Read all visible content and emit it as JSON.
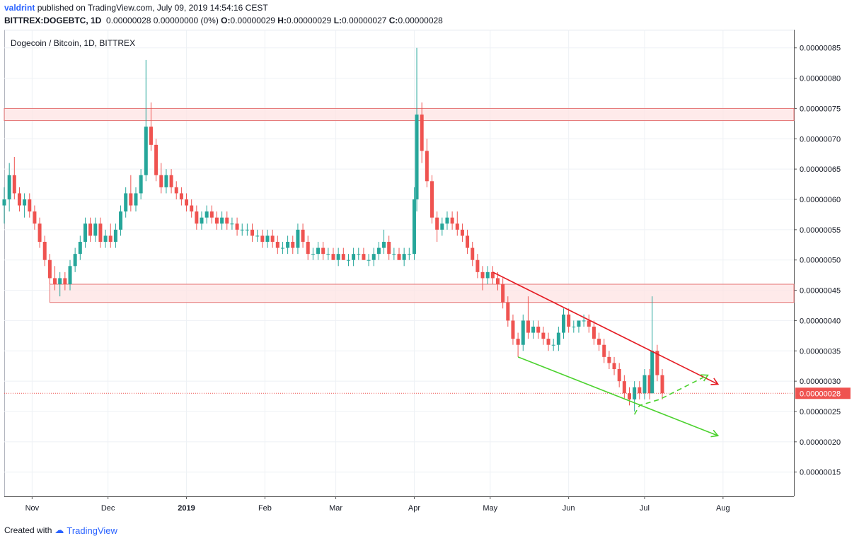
{
  "header": {
    "author": "valdrint",
    "published_text": "published on TradingView.com, July 09, 2019 14:54:16 CEST",
    "symbol": "BITTREX:DOGEBTC, 1D",
    "ohlc_text": "0.00000028 0.00000000 (0%)",
    "o_label": "O:",
    "o_value": "0.00000029",
    "h_label": "H:",
    "h_value": "0.00000029",
    "l_label": "L:",
    "l_value": "0.00000027",
    "c_label": "C:",
    "c_value": "0.00000028"
  },
  "footer": {
    "created_with": "Created with",
    "brand": "TradingView"
  },
  "colors": {
    "up": "#26a69a",
    "down": "#ef5350",
    "zone_fill": "#fde3e3",
    "zone_stroke": "#e57373",
    "red_line": "#e51c23",
    "green_line": "#4cd22f",
    "price_label_bg": "#ef5350",
    "grid": "#eef1f5"
  },
  "chart_data": {
    "type": "candlestick",
    "title": "Dogecoin / Bitcoin, 1D, BITTREX",
    "y_ticks": [
      "0.00000085",
      "0.00000080",
      "0.00000075",
      "0.00000070",
      "0.00000065",
      "0.00000060",
      "0.00000055",
      "0.00000050",
      "0.00000045",
      "0.00000040",
      "0.00000035",
      "0.00000030",
      "0.00000025",
      "0.00000020",
      "0.00000015"
    ],
    "y_tick_values": [
      85,
      80,
      75,
      70,
      65,
      60,
      55,
      50,
      45,
      40,
      35,
      30,
      25,
      20,
      15
    ],
    "y_unit_scale": 1e-08,
    "ylim": [
      11,
      88
    ],
    "x_ticks": [
      "Nov",
      "Dec",
      "2019",
      "Feb",
      "Mar",
      "Apr",
      "May",
      "Jun",
      "Jul",
      "Aug"
    ],
    "x_tick_dates": [
      "2018-11-01",
      "2018-12-01",
      "2019-01-01",
      "2019-02-01",
      "2019-03-01",
      "2019-04-01",
      "2019-05-01",
      "2019-06-01",
      "2019-07-01",
      "2019-08-01"
    ],
    "xlim": [
      "2018-10-21",
      "2019-08-29"
    ],
    "current_price": "0.00000028",
    "current_price_value": 28,
    "zones": [
      {
        "from": "2018-10-21",
        "to": "2019-08-29",
        "low": 73,
        "high": 75
      },
      {
        "from": "2018-11-08",
        "to": "2019-08-29",
        "low": 43,
        "high": 46
      }
    ],
    "trend_lines": [
      {
        "color": "red",
        "style": "solid",
        "arrow": true,
        "points": [
          [
            "2019-05-02",
            48
          ],
          [
            "2019-07-30",
            29.5
          ]
        ]
      },
      {
        "color": "green",
        "style": "solid",
        "arrow": true,
        "points": [
          [
            "2019-05-12",
            34
          ],
          [
            "2019-07-30",
            21
          ]
        ]
      },
      {
        "color": "green",
        "style": "dashed",
        "arrow": true,
        "points": [
          [
            "2019-06-27",
            24.5
          ],
          [
            "2019-06-29",
            26
          ],
          [
            "2019-07-07",
            27
          ],
          [
            "2019-07-26",
            31
          ]
        ]
      }
    ],
    "candles": [
      {
        "date": "2018-10-21",
        "o": 59,
        "h": 62,
        "l": 56,
        "c": 60
      },
      {
        "date": "2018-10-23",
        "o": 60,
        "h": 66,
        "l": 58,
        "c": 64
      },
      {
        "date": "2018-10-25",
        "o": 64,
        "h": 67,
        "l": 60,
        "c": 61
      },
      {
        "date": "2018-10-27",
        "o": 61,
        "h": 62,
        "l": 58,
        "c": 59
      },
      {
        "date": "2018-10-29",
        "o": 59,
        "h": 61,
        "l": 57,
        "c": 60
      },
      {
        "date": "2018-10-31",
        "o": 60,
        "h": 61,
        "l": 57,
        "c": 58
      },
      {
        "date": "2018-11-02",
        "o": 58,
        "h": 59,
        "l": 55,
        "c": 56
      },
      {
        "date": "2018-11-04",
        "o": 56,
        "h": 57,
        "l": 52,
        "c": 53
      },
      {
        "date": "2018-11-06",
        "o": 53,
        "h": 54,
        "l": 49,
        "c": 50
      },
      {
        "date": "2018-11-08",
        "o": 50,
        "h": 51,
        "l": 46,
        "c": 47
      },
      {
        "date": "2018-11-10",
        "o": 47,
        "h": 49,
        "l": 45,
        "c": 46
      },
      {
        "date": "2018-11-12",
        "o": 46,
        "h": 48,
        "l": 44,
        "c": 47
      },
      {
        "date": "2018-11-14",
        "o": 47,
        "h": 48,
        "l": 45,
        "c": 46
      },
      {
        "date": "2018-11-16",
        "o": 46,
        "h": 50,
        "l": 45,
        "c": 49
      },
      {
        "date": "2018-11-18",
        "o": 49,
        "h": 52,
        "l": 48,
        "c": 51
      },
      {
        "date": "2018-11-20",
        "o": 51,
        "h": 54,
        "l": 50,
        "c": 53
      },
      {
        "date": "2018-11-22",
        "o": 53,
        "h": 57,
        "l": 52,
        "c": 56
      },
      {
        "date": "2018-11-24",
        "o": 56,
        "h": 57,
        "l": 53,
        "c": 54
      },
      {
        "date": "2018-11-26",
        "o": 54,
        "h": 57,
        "l": 53,
        "c": 56
      },
      {
        "date": "2018-11-28",
        "o": 56,
        "h": 57,
        "l": 52,
        "c": 53
      },
      {
        "date": "2018-11-30",
        "o": 53,
        "h": 55,
        "l": 52,
        "c": 54
      },
      {
        "date": "2018-12-02",
        "o": 54,
        "h": 56,
        "l": 52,
        "c": 53
      },
      {
        "date": "2018-12-04",
        "o": 53,
        "h": 56,
        "l": 52,
        "c": 55
      },
      {
        "date": "2018-12-06",
        "o": 55,
        "h": 59,
        "l": 54,
        "c": 58
      },
      {
        "date": "2018-12-08",
        "o": 58,
        "h": 62,
        "l": 57,
        "c": 61
      },
      {
        "date": "2018-12-10",
        "o": 61,
        "h": 64,
        "l": 58,
        "c": 59
      },
      {
        "date": "2018-12-12",
        "o": 59,
        "h": 62,
        "l": 58,
        "c": 61
      },
      {
        "date": "2018-12-14",
        "o": 61,
        "h": 65,
        "l": 60,
        "c": 64
      },
      {
        "date": "2018-12-16",
        "o": 64,
        "h": 83,
        "l": 63,
        "c": 72
      },
      {
        "date": "2018-12-18",
        "o": 72,
        "h": 76,
        "l": 68,
        "c": 69
      },
      {
        "date": "2018-12-20",
        "o": 69,
        "h": 70,
        "l": 63,
        "c": 64
      },
      {
        "date": "2018-12-22",
        "o": 64,
        "h": 66,
        "l": 61,
        "c": 62
      },
      {
        "date": "2018-12-24",
        "o": 62,
        "h": 65,
        "l": 61,
        "c": 64
      },
      {
        "date": "2018-12-26",
        "o": 64,
        "h": 65,
        "l": 61,
        "c": 62
      },
      {
        "date": "2018-12-28",
        "o": 62,
        "h": 63,
        "l": 60,
        "c": 61
      },
      {
        "date": "2018-12-30",
        "o": 61,
        "h": 62,
        "l": 59,
        "c": 60
      },
      {
        "date": "2019-01-01",
        "o": 60,
        "h": 61,
        "l": 58,
        "c": 59
      },
      {
        "date": "2019-01-03",
        "o": 59,
        "h": 60,
        "l": 57,
        "c": 58
      },
      {
        "date": "2019-01-05",
        "o": 58,
        "h": 59,
        "l": 55,
        "c": 56
      },
      {
        "date": "2019-01-07",
        "o": 56,
        "h": 58,
        "l": 55,
        "c": 57
      },
      {
        "date": "2019-01-09",
        "o": 57,
        "h": 59,
        "l": 56,
        "c": 58
      },
      {
        "date": "2019-01-11",
        "o": 58,
        "h": 59,
        "l": 56,
        "c": 57
      },
      {
        "date": "2019-01-13",
        "o": 57,
        "h": 58,
        "l": 55,
        "c": 56
      },
      {
        "date": "2019-01-15",
        "o": 56,
        "h": 58,
        "l": 55,
        "c": 57
      },
      {
        "date": "2019-01-17",
        "o": 57,
        "h": 58,
        "l": 55,
        "c": 56
      },
      {
        "date": "2019-01-19",
        "o": 56,
        "h": 57,
        "l": 55,
        "c": 56
      },
      {
        "date": "2019-01-21",
        "o": 56,
        "h": 57,
        "l": 54,
        "c": 55
      },
      {
        "date": "2019-01-23",
        "o": 55,
        "h": 56,
        "l": 54,
        "c": 55
      },
      {
        "date": "2019-01-25",
        "o": 55,
        "h": 56,
        "l": 54,
        "c": 55
      },
      {
        "date": "2019-01-27",
        "o": 55,
        "h": 56,
        "l": 53,
        "c": 54
      },
      {
        "date": "2019-01-29",
        "o": 54,
        "h": 55,
        "l": 53,
        "c": 54
      },
      {
        "date": "2019-01-31",
        "o": 54,
        "h": 55,
        "l": 52,
        "c": 53
      },
      {
        "date": "2019-02-02",
        "o": 53,
        "h": 55,
        "l": 52,
        "c": 54
      },
      {
        "date": "2019-02-04",
        "o": 54,
        "h": 55,
        "l": 52,
        "c": 53
      },
      {
        "date": "2019-02-06",
        "o": 53,
        "h": 54,
        "l": 51,
        "c": 52
      },
      {
        "date": "2019-02-08",
        "o": 52,
        "h": 53,
        "l": 51,
        "c": 52
      },
      {
        "date": "2019-02-10",
        "o": 52,
        "h": 54,
        "l": 51,
        "c": 53
      },
      {
        "date": "2019-02-12",
        "o": 53,
        "h": 54,
        "l": 51,
        "c": 52
      },
      {
        "date": "2019-02-14",
        "o": 52,
        "h": 56,
        "l": 51,
        "c": 55
      },
      {
        "date": "2019-02-16",
        "o": 55,
        "h": 56,
        "l": 52,
        "c": 53
      },
      {
        "date": "2019-02-18",
        "o": 53,
        "h": 54,
        "l": 50,
        "c": 51
      },
      {
        "date": "2019-02-20",
        "o": 51,
        "h": 52,
        "l": 50,
        "c": 51
      },
      {
        "date": "2019-02-22",
        "o": 51,
        "h": 53,
        "l": 50,
        "c": 52
      },
      {
        "date": "2019-02-24",
        "o": 52,
        "h": 53,
        "l": 50,
        "c": 51
      },
      {
        "date": "2019-02-26",
        "o": 51,
        "h": 52,
        "l": 50,
        "c": 51
      },
      {
        "date": "2019-02-28",
        "o": 51,
        "h": 52,
        "l": 50,
        "c": 50
      },
      {
        "date": "2019-03-02",
        "o": 50,
        "h": 52,
        "l": 49,
        "c": 51
      },
      {
        "date": "2019-03-04",
        "o": 51,
        "h": 52,
        "l": 50,
        "c": 50
      },
      {
        "date": "2019-03-06",
        "o": 50,
        "h": 51,
        "l": 49,
        "c": 50
      },
      {
        "date": "2019-03-08",
        "o": 50,
        "h": 52,
        "l": 49,
        "c": 51
      },
      {
        "date": "2019-03-10",
        "o": 51,
        "h": 52,
        "l": 50,
        "c": 51
      },
      {
        "date": "2019-03-12",
        "o": 51,
        "h": 52,
        "l": 50,
        "c": 50
      },
      {
        "date": "2019-03-14",
        "o": 50,
        "h": 51,
        "l": 49,
        "c": 50
      },
      {
        "date": "2019-03-16",
        "o": 50,
        "h": 52,
        "l": 49,
        "c": 51
      },
      {
        "date": "2019-03-18",
        "o": 51,
        "h": 53,
        "l": 50,
        "c": 52
      },
      {
        "date": "2019-03-20",
        "o": 52,
        "h": 55,
        "l": 51,
        "c": 53
      },
      {
        "date": "2019-03-22",
        "o": 53,
        "h": 54,
        "l": 50,
        "c": 51
      },
      {
        "date": "2019-03-24",
        "o": 51,
        "h": 52,
        "l": 50,
        "c": 51
      },
      {
        "date": "2019-03-26",
        "o": 51,
        "h": 52,
        "l": 50,
        "c": 50
      },
      {
        "date": "2019-03-28",
        "o": 50,
        "h": 52,
        "l": 49,
        "c": 51
      },
      {
        "date": "2019-03-30",
        "o": 51,
        "h": 52,
        "l": 50,
        "c": 51
      },
      {
        "date": "2019-04-01",
        "o": 51,
        "h": 62,
        "l": 50,
        "c": 60
      },
      {
        "date": "2019-04-02",
        "o": 60,
        "h": 85,
        "l": 58,
        "c": 74
      },
      {
        "date": "2019-04-04",
        "o": 74,
        "h": 76,
        "l": 66,
        "c": 68
      },
      {
        "date": "2019-04-06",
        "o": 68,
        "h": 70,
        "l": 62,
        "c": 63
      },
      {
        "date": "2019-04-08",
        "o": 63,
        "h": 64,
        "l": 56,
        "c": 57
      },
      {
        "date": "2019-04-10",
        "o": 57,
        "h": 58,
        "l": 53,
        "c": 55
      },
      {
        "date": "2019-04-12",
        "o": 55,
        "h": 57,
        "l": 54,
        "c": 56
      },
      {
        "date": "2019-04-14",
        "o": 56,
        "h": 58,
        "l": 55,
        "c": 57
      },
      {
        "date": "2019-04-16",
        "o": 57,
        "h": 58,
        "l": 55,
        "c": 56
      },
      {
        "date": "2019-04-18",
        "o": 56,
        "h": 58,
        "l": 54,
        "c": 55
      },
      {
        "date": "2019-04-20",
        "o": 55,
        "h": 56,
        "l": 53,
        "c": 54
      },
      {
        "date": "2019-04-22",
        "o": 54,
        "h": 55,
        "l": 51,
        "c": 52
      },
      {
        "date": "2019-04-24",
        "o": 52,
        "h": 53,
        "l": 49,
        "c": 50
      },
      {
        "date": "2019-04-26",
        "o": 50,
        "h": 51,
        "l": 47,
        "c": 48
      },
      {
        "date": "2019-04-28",
        "o": 48,
        "h": 49,
        "l": 45,
        "c": 47
      },
      {
        "date": "2019-04-30",
        "o": 47,
        "h": 49,
        "l": 46,
        "c": 48
      },
      {
        "date": "2019-05-02",
        "o": 48,
        "h": 49,
        "l": 46,
        "c": 47
      },
      {
        "date": "2019-05-04",
        "o": 47,
        "h": 48,
        "l": 45,
        "c": 46
      },
      {
        "date": "2019-05-06",
        "o": 46,
        "h": 47,
        "l": 42,
        "c": 43
      },
      {
        "date": "2019-05-08",
        "o": 43,
        "h": 44,
        "l": 39,
        "c": 40
      },
      {
        "date": "2019-05-10",
        "o": 40,
        "h": 41,
        "l": 36,
        "c": 37
      },
      {
        "date": "2019-05-12",
        "o": 37,
        "h": 38,
        "l": 34,
        "c": 36
      },
      {
        "date": "2019-05-14",
        "o": 36,
        "h": 41,
        "l": 35,
        "c": 40
      },
      {
        "date": "2019-05-16",
        "o": 40,
        "h": 44,
        "l": 37,
        "c": 38
      },
      {
        "date": "2019-05-18",
        "o": 38,
        "h": 40,
        "l": 37,
        "c": 39
      },
      {
        "date": "2019-05-20",
        "o": 39,
        "h": 40,
        "l": 37,
        "c": 38
      },
      {
        "date": "2019-05-22",
        "o": 38,
        "h": 39,
        "l": 36,
        "c": 37
      },
      {
        "date": "2019-05-24",
        "o": 37,
        "h": 38,
        "l": 35,
        "c": 36
      },
      {
        "date": "2019-05-26",
        "o": 36,
        "h": 37,
        "l": 35,
        "c": 36
      },
      {
        "date": "2019-05-28",
        "o": 36,
        "h": 39,
        "l": 35,
        "c": 38
      },
      {
        "date": "2019-05-30",
        "o": 38,
        "h": 42,
        "l": 37,
        "c": 41
      },
      {
        "date": "2019-06-01",
        "o": 41,
        "h": 42,
        "l": 38,
        "c": 39
      },
      {
        "date": "2019-06-03",
        "o": 39,
        "h": 40,
        "l": 38,
        "c": 39
      },
      {
        "date": "2019-06-05",
        "o": 39,
        "h": 40,
        "l": 38,
        "c": 40
      },
      {
        "date": "2019-06-07",
        "o": 40,
        "h": 41,
        "l": 39,
        "c": 40
      },
      {
        "date": "2019-06-09",
        "o": 40,
        "h": 41,
        "l": 38,
        "c": 39
      },
      {
        "date": "2019-06-11",
        "o": 39,
        "h": 40,
        "l": 36,
        "c": 37
      },
      {
        "date": "2019-06-13",
        "o": 37,
        "h": 38,
        "l": 35,
        "c": 36
      },
      {
        "date": "2019-06-15",
        "o": 36,
        "h": 37,
        "l": 33,
        "c": 34
      },
      {
        "date": "2019-06-17",
        "o": 34,
        "h": 35,
        "l": 32,
        "c": 33
      },
      {
        "date": "2019-06-19",
        "o": 33,
        "h": 34,
        "l": 31,
        "c": 32
      },
      {
        "date": "2019-06-21",
        "o": 32,
        "h": 33,
        "l": 29,
        "c": 30
      },
      {
        "date": "2019-06-23",
        "o": 30,
        "h": 31,
        "l": 27,
        "c": 28
      },
      {
        "date": "2019-06-25",
        "o": 28,
        "h": 29,
        "l": 26,
        "c": 27
      },
      {
        "date": "2019-06-27",
        "o": 27,
        "h": 30,
        "l": 25,
        "c": 29
      },
      {
        "date": "2019-06-29",
        "o": 29,
        "h": 30,
        "l": 27,
        "c": 28
      },
      {
        "date": "2019-07-01",
        "o": 28,
        "h": 32,
        "l": 27,
        "c": 31
      },
      {
        "date": "2019-07-03",
        "o": 31,
        "h": 32,
        "l": 27,
        "c": 28
      },
      {
        "date": "2019-07-04",
        "o": 28,
        "h": 44,
        "l": 28,
        "c": 35
      },
      {
        "date": "2019-07-06",
        "o": 35,
        "h": 36,
        "l": 30,
        "c": 31
      },
      {
        "date": "2019-07-08",
        "o": 31,
        "h": 32,
        "l": 27,
        "c": 28
      }
    ]
  }
}
